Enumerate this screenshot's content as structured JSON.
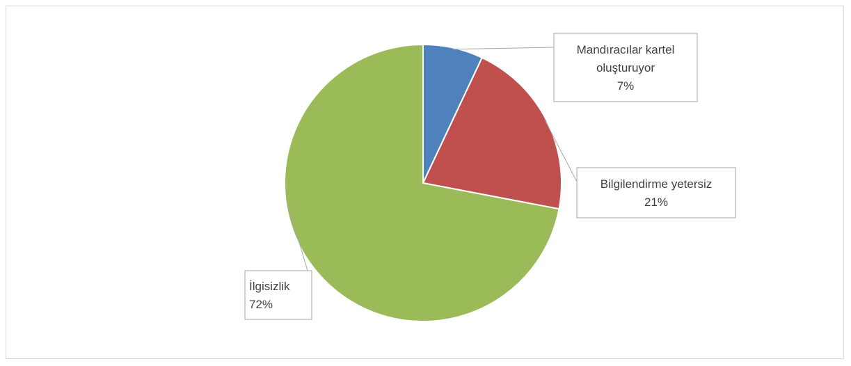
{
  "chart_data": {
    "type": "pie",
    "title": "",
    "slices": [
      {
        "name": "Mandıracılar kartel oluşturuyor",
        "label_lines": [
          "Mandıracılar kartel",
          "oluşturuyor"
        ],
        "value": 7,
        "value_label": "7%",
        "color": "#4f81bd"
      },
      {
        "name": "Bilgilendirme yetersiz",
        "label_lines": [
          "Bilgilendirme yetersiz"
        ],
        "value": 21,
        "value_label": "21%",
        "color": "#c0504d"
      },
      {
        "name": "İlgisizlik",
        "label_lines": [
          "İlgisizlik"
        ],
        "value": 72,
        "value_label": "72%",
        "color": "#9bbb59"
      }
    ],
    "start_angle": "top",
    "direction": "clockwise",
    "labels": "callouts with leader lines",
    "legend": "none"
  }
}
